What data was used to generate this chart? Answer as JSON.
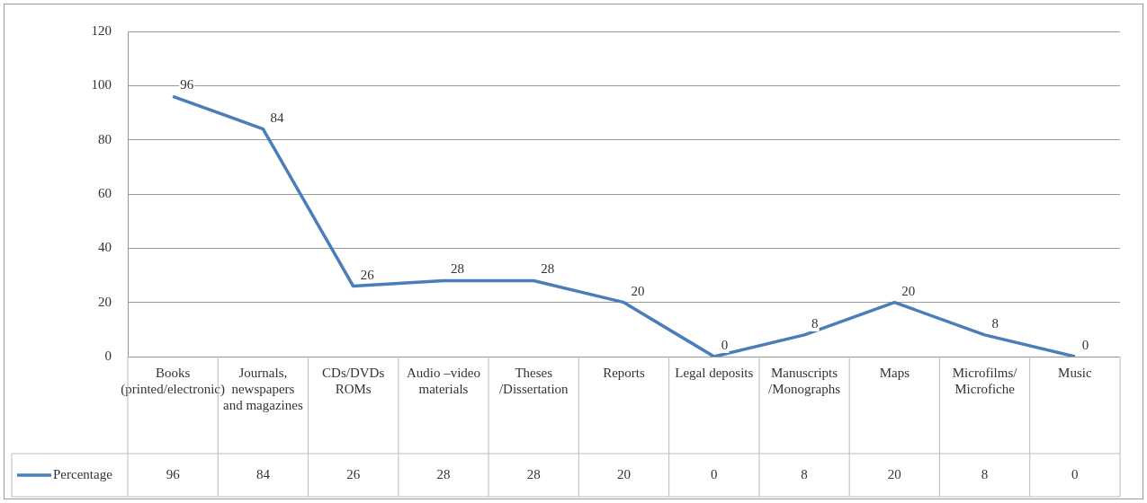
{
  "chart_data": {
    "type": "line",
    "categories": [
      "Books (printed/electronic)",
      "Journals, newspapers and magazines",
      "CDs/DVDs ROMs",
      "Audio –video materials",
      "Theses /Dissertation",
      "Reports",
      "Legal deposits",
      "Manuscripts /Monographs",
      "Maps",
      "Microfilms/ Microfiche",
      "Music"
    ],
    "series": [
      {
        "name": "Percentage",
        "color": "#4a7ebb",
        "values": [
          96,
          84,
          26,
          28,
          28,
          20,
          0,
          8,
          20,
          8,
          0
        ]
      }
    ],
    "annotations": [
      {
        "text": "96",
        "x": "Books (printed/electronic)",
        "y": 96
      },
      {
        "text": "84",
        "x": "Journals, newspapers and magazines",
        "y": 84
      },
      {
        "text": "26",
        "x": "CDs/DVDs ROMs",
        "y": 26
      },
      {
        "text": "28",
        "x": "Audio –video materials",
        "y": 28
      },
      {
        "text": "28",
        "x": "Theses /Dissertation",
        "y": 28
      },
      {
        "text": "20",
        "x": "Reports",
        "y": 20
      },
      {
        "text": "0",
        "x": "Legal deposits",
        "y": 0
      },
      {
        "text": "8",
        "x": "Manuscripts /Monographs",
        "y": 8
      },
      {
        "text": "20",
        "x": "Maps",
        "y": 20
      },
      {
        "text": "8",
        "x": "Microfilms/ Microfiche",
        "y": 8
      },
      {
        "text": "0",
        "x": "Music",
        "y": 0
      }
    ],
    "ylim": [
      0,
      120
    ],
    "yticks": [
      0,
      20,
      40,
      60,
      80,
      100,
      120
    ],
    "grid": "y",
    "legend": "bottom",
    "marker": "none",
    "line_style": "solid",
    "data_labels": true
  }
}
